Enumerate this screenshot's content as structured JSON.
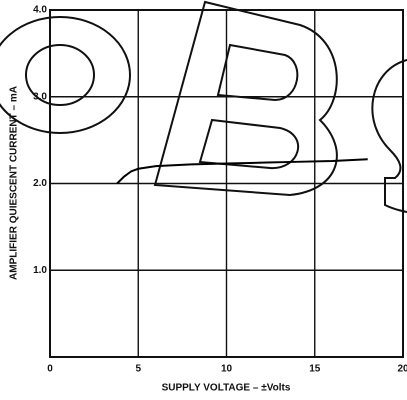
{
  "chart_data": {
    "type": "line",
    "xlabel": "SUPPLY VOLTAGE – ±Volts",
    "ylabel": "AMPLIFIER QUIESCENT CURRENT – mA",
    "x": [
      3.8,
      4.2,
      4.6,
      5,
      6,
      8,
      10,
      12,
      14,
      16,
      18
    ],
    "series": [
      {
        "color": "#000000",
        "values": [
          2.0,
          2.08,
          2.14,
          2.17,
          2.2,
          2.22,
          2.23,
          2.24,
          2.25,
          2.26,
          2.28
        ]
      }
    ],
    "xlim": [
      0,
      20
    ],
    "xticks": [
      0,
      5,
      10,
      15,
      20
    ],
    "ylim": [
      0,
      4
    ],
    "yticks": [
      {
        "value": 1,
        "label": "1.0"
      },
      {
        "value": 2,
        "label": "2.0"
      },
      {
        "value": 3,
        "label": "3.0"
      },
      {
        "value": 4,
        "label": "4.0"
      }
    ],
    "grid": true
  }
}
